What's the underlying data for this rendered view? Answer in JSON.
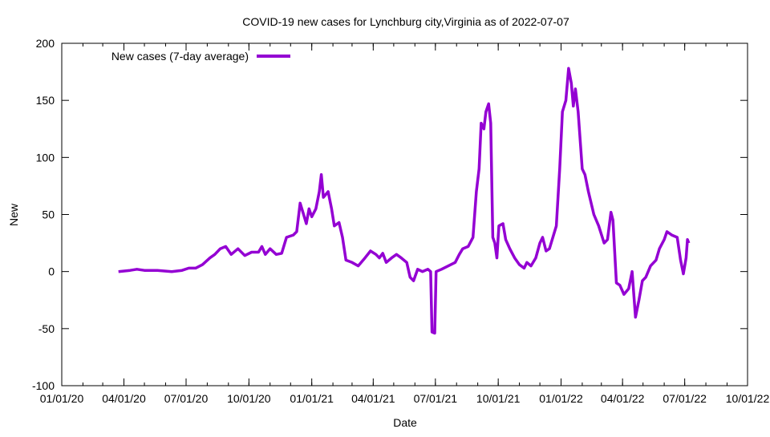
{
  "chart_data": {
    "type": "line",
    "title": "COVID-19 new cases for Lynchburg city,Virginia as of 2022-07-07",
    "xlabel": "Date",
    "ylabel": "New",
    "ylim": [
      -100,
      200
    ],
    "yticks": [
      -100,
      -50,
      0,
      50,
      100,
      150,
      200
    ],
    "xlim": [
      "2020-01-01",
      "2022-10-01"
    ],
    "xticks": [
      {
        "date": "2020-01-01",
        "label": "01/01/20"
      },
      {
        "date": "2020-04-01",
        "label": "04/01/20"
      },
      {
        "date": "2020-07-01",
        "label": "07/01/20"
      },
      {
        "date": "2020-10-01",
        "label": "10/01/20"
      },
      {
        "date": "2021-01-01",
        "label": "01/01/21"
      },
      {
        "date": "2021-04-01",
        "label": "04/01/21"
      },
      {
        "date": "2021-07-01",
        "label": "07/01/21"
      },
      {
        "date": "2021-10-01",
        "label": "10/01/21"
      },
      {
        "date": "2022-01-01",
        "label": "01/01/22"
      },
      {
        "date": "2022-04-01",
        "label": "04/01/22"
      },
      {
        "date": "2022-07-01",
        "label": "07/01/22"
      },
      {
        "date": "2022-10-01",
        "label": "10/01/22"
      }
    ],
    "grid": false,
    "legend": {
      "position": "top-left",
      "entries": [
        "New cases (7-day average)"
      ]
    },
    "series": [
      {
        "name": "New cases (7-day average)",
        "color": "#9400d3",
        "points": [
          [
            "2020-03-24",
            0
          ],
          [
            "2020-04-10",
            1
          ],
          [
            "2020-04-20",
            2
          ],
          [
            "2020-05-01",
            1
          ],
          [
            "2020-05-20",
            1
          ],
          [
            "2020-06-10",
            0
          ],
          [
            "2020-06-25",
            1
          ],
          [
            "2020-07-05",
            3
          ],
          [
            "2020-07-15",
            3
          ],
          [
            "2020-07-25",
            6
          ],
          [
            "2020-08-05",
            12
          ],
          [
            "2020-08-12",
            15
          ],
          [
            "2020-08-20",
            20
          ],
          [
            "2020-08-28",
            22
          ],
          [
            "2020-09-05",
            15
          ],
          [
            "2020-09-15",
            20
          ],
          [
            "2020-09-25",
            14
          ],
          [
            "2020-10-05",
            17
          ],
          [
            "2020-10-15",
            17
          ],
          [
            "2020-10-20",
            22
          ],
          [
            "2020-10-25",
            15
          ],
          [
            "2020-11-01",
            20
          ],
          [
            "2020-11-10",
            15
          ],
          [
            "2020-11-18",
            16
          ],
          [
            "2020-11-25",
            30
          ],
          [
            "2020-12-05",
            32
          ],
          [
            "2020-12-10",
            35
          ],
          [
            "2020-12-15",
            60
          ],
          [
            "2020-12-20",
            50
          ],
          [
            "2020-12-24",
            42
          ],
          [
            "2020-12-28",
            55
          ],
          [
            "2021-01-01",
            48
          ],
          [
            "2021-01-07",
            55
          ],
          [
            "2021-01-12",
            70
          ],
          [
            "2021-01-15",
            85
          ],
          [
            "2021-01-18",
            65
          ],
          [
            "2021-01-25",
            70
          ],
          [
            "2021-01-30",
            55
          ],
          [
            "2021-02-03",
            40
          ],
          [
            "2021-02-10",
            43
          ],
          [
            "2021-02-15",
            30
          ],
          [
            "2021-02-20",
            10
          ],
          [
            "2021-03-01",
            8
          ],
          [
            "2021-03-10",
            5
          ],
          [
            "2021-03-20",
            12
          ],
          [
            "2021-03-28",
            18
          ],
          [
            "2021-04-05",
            15
          ],
          [
            "2021-04-10",
            12
          ],
          [
            "2021-04-15",
            16
          ],
          [
            "2021-04-20",
            8
          ],
          [
            "2021-04-28",
            12
          ],
          [
            "2021-05-05",
            15
          ],
          [
            "2021-05-12",
            12
          ],
          [
            "2021-05-20",
            8
          ],
          [
            "2021-05-25",
            -5
          ],
          [
            "2021-05-30",
            -8
          ],
          [
            "2021-06-05",
            2
          ],
          [
            "2021-06-12",
            0
          ],
          [
            "2021-06-20",
            2
          ],
          [
            "2021-06-24",
            0
          ],
          [
            "2021-06-26",
            -53
          ],
          [
            "2021-06-30",
            -54
          ],
          [
            "2021-07-02",
            0
          ],
          [
            "2021-07-10",
            2
          ],
          [
            "2021-07-20",
            5
          ],
          [
            "2021-07-30",
            8
          ],
          [
            "2021-08-05",
            15
          ],
          [
            "2021-08-10",
            20
          ],
          [
            "2021-08-18",
            22
          ],
          [
            "2021-08-25",
            30
          ],
          [
            "2021-08-30",
            70
          ],
          [
            "2021-09-03",
            90
          ],
          [
            "2021-09-06",
            130
          ],
          [
            "2021-09-10",
            125
          ],
          [
            "2021-09-13",
            140
          ],
          [
            "2021-09-17",
            147
          ],
          [
            "2021-09-20",
            130
          ],
          [
            "2021-09-23",
            30
          ],
          [
            "2021-09-26",
            25
          ],
          [
            "2021-09-29",
            12
          ],
          [
            "2021-10-02",
            40
          ],
          [
            "2021-10-08",
            42
          ],
          [
            "2021-10-12",
            28
          ],
          [
            "2021-10-18",
            20
          ],
          [
            "2021-10-25",
            12
          ],
          [
            "2021-11-01",
            6
          ],
          [
            "2021-11-08",
            3
          ],
          [
            "2021-11-12",
            8
          ],
          [
            "2021-11-18",
            5
          ],
          [
            "2021-11-25",
            12
          ],
          [
            "2021-12-01",
            25
          ],
          [
            "2021-12-05",
            30
          ],
          [
            "2021-12-10",
            18
          ],
          [
            "2021-12-15",
            20
          ],
          [
            "2021-12-20",
            30
          ],
          [
            "2021-12-25",
            40
          ],
          [
            "2021-12-30",
            90
          ],
          [
            "2022-01-03",
            140
          ],
          [
            "2022-01-08",
            150
          ],
          [
            "2022-01-12",
            178
          ],
          [
            "2022-01-16",
            165
          ],
          [
            "2022-01-19",
            145
          ],
          [
            "2022-01-22",
            160
          ],
          [
            "2022-01-26",
            140
          ],
          [
            "2022-02-01",
            90
          ],
          [
            "2022-02-05",
            85
          ],
          [
            "2022-02-10",
            70
          ],
          [
            "2022-02-18",
            50
          ],
          [
            "2022-02-25",
            40
          ],
          [
            "2022-03-05",
            25
          ],
          [
            "2022-03-10",
            28
          ],
          [
            "2022-03-15",
            52
          ],
          [
            "2022-03-18",
            45
          ],
          [
            "2022-03-23",
            -10
          ],
          [
            "2022-03-28",
            -12
          ],
          [
            "2022-04-03",
            -20
          ],
          [
            "2022-04-10",
            -15
          ],
          [
            "2022-04-15",
            0
          ],
          [
            "2022-04-20",
            -40
          ],
          [
            "2022-04-25",
            -25
          ],
          [
            "2022-04-30",
            -8
          ],
          [
            "2022-05-05",
            -5
          ],
          [
            "2022-05-12",
            5
          ],
          [
            "2022-05-20",
            10
          ],
          [
            "2022-05-25",
            20
          ],
          [
            "2022-06-01",
            28
          ],
          [
            "2022-06-05",
            35
          ],
          [
            "2022-06-12",
            32
          ],
          [
            "2022-06-20",
            30
          ],
          [
            "2022-06-25",
            10
          ],
          [
            "2022-06-29",
            -2
          ],
          [
            "2022-07-03",
            12
          ],
          [
            "2022-07-05",
            28
          ],
          [
            "2022-07-07",
            25
          ]
        ]
      }
    ]
  }
}
